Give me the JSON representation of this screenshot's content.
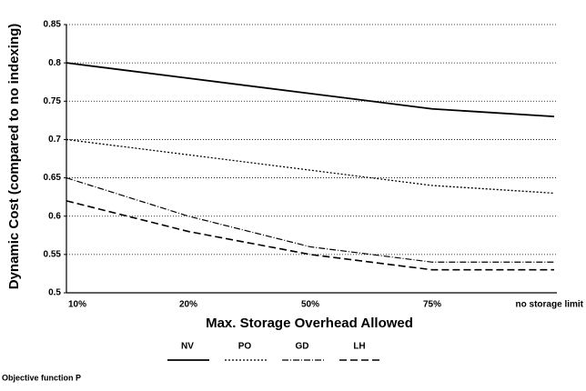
{
  "chart_data": {
    "type": "line",
    "y_label": "Dynamic Cost (compared to no indexing)",
    "x_label": "Max. Storage Overhead Allowed",
    "categories": [
      "10%",
      "20%",
      "50%",
      "75%",
      "no storage limit"
    ],
    "series": [
      {
        "name": "NV",
        "color": "#000000",
        "style": "solid",
        "values": [
          0.8,
          0.78,
          0.76,
          0.74,
          0.73
        ]
      },
      {
        "name": "PO",
        "color": "#000000",
        "style": "dotted",
        "values": [
          0.7,
          0.68,
          0.66,
          0.64,
          0.63
        ]
      },
      {
        "name": "GD",
        "color": "#000000",
        "style": "dashdot",
        "values": [
          0.65,
          0.6,
          0.56,
          0.54,
          0.54
        ]
      },
      {
        "name": "LH",
        "color": "#000000",
        "style": "dashed",
        "values": [
          0.62,
          0.58,
          0.55,
          0.53,
          0.53
        ]
      }
    ],
    "ylim": [
      0.5,
      0.85
    ],
    "yticks": [
      0.5,
      0.55,
      0.6,
      0.65,
      0.7,
      0.75,
      0.8,
      0.85
    ],
    "grid": true,
    "footnote": "Objective function P"
  }
}
